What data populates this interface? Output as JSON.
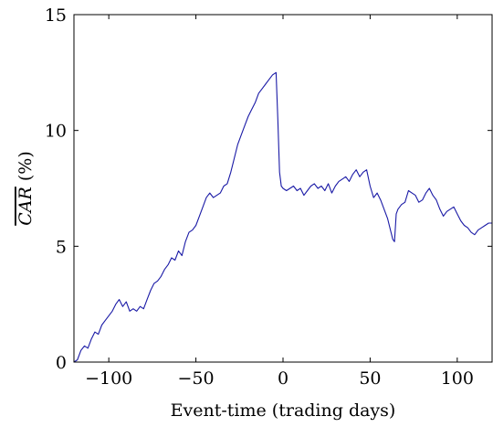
{
  "chart_data": {
    "type": "line",
    "xlabel": "Event-time (trading days)",
    "ylabel": "CAR (%)",
    "ylabel_overline": "CAR",
    "ylabel_rest": " (%)",
    "xlim": [
      -120,
      120
    ],
    "ylim": [
      0,
      15
    ],
    "xticks": [
      -100,
      -50,
      0,
      50,
      100
    ],
    "xtick_labels": [
      "−100",
      "−50",
      "0",
      "50",
      "100"
    ],
    "yticks": [
      0,
      5,
      10,
      15
    ],
    "ytick_labels": [
      "0",
      "5",
      "10",
      "15"
    ],
    "grid": false,
    "line_color": "#1a1aa6",
    "series": [
      {
        "x": [
          -120,
          -118,
          -116,
          -114,
          -112,
          -110,
          -108,
          -106,
          -104,
          -102,
          -100,
          -98,
          -96,
          -94,
          -92,
          -90,
          -88,
          -86,
          -84,
          -82,
          -80,
          -78,
          -76,
          -74,
          -72,
          -70,
          -68,
          -66,
          -64,
          -62,
          -60,
          -58,
          -56,
          -54,
          -52,
          -50,
          -48,
          -46,
          -44,
          -42,
          -40,
          -38,
          -36,
          -34,
          -32,
          -30,
          -28,
          -26,
          -24,
          -22,
          -20,
          -18,
          -16,
          -14,
          -12,
          -10,
          -8,
          -6,
          -4,
          -3,
          -2,
          -1,
          0,
          2,
          4,
          6,
          8,
          10,
          12,
          14,
          16,
          18,
          20,
          22,
          24,
          26,
          28,
          30,
          32,
          34,
          36,
          38,
          40,
          42,
          44,
          46,
          48,
          50,
          52,
          54,
          56,
          58,
          60,
          62,
          63,
          64,
          65,
          66,
          68,
          70,
          72,
          74,
          76,
          78,
          80,
          82,
          84,
          86,
          88,
          90,
          92,
          94,
          96,
          98,
          100,
          102,
          104,
          106,
          108,
          110,
          112,
          114,
          116,
          118,
          120
        ],
        "y": [
          0.0,
          0.1,
          0.5,
          0.7,
          0.6,
          1.0,
          1.3,
          1.2,
          1.6,
          1.8,
          2.0,
          2.2,
          2.5,
          2.7,
          2.4,
          2.6,
          2.2,
          2.3,
          2.2,
          2.4,
          2.3,
          2.7,
          3.1,
          3.4,
          3.5,
          3.7,
          4.0,
          4.2,
          4.5,
          4.4,
          4.8,
          4.6,
          5.2,
          5.6,
          5.7,
          5.9,
          6.3,
          6.7,
          7.1,
          7.3,
          7.1,
          7.2,
          7.3,
          7.6,
          7.7,
          8.2,
          8.8,
          9.4,
          9.8,
          10.2,
          10.6,
          10.9,
          11.2,
          11.6,
          11.8,
          12.0,
          12.2,
          12.4,
          12.5,
          10.5,
          8.2,
          7.6,
          7.5,
          7.4,
          7.5,
          7.6,
          7.4,
          7.5,
          7.2,
          7.4,
          7.6,
          7.7,
          7.5,
          7.6,
          7.4,
          7.7,
          7.3,
          7.6,
          7.8,
          7.9,
          8.0,
          7.8,
          8.1,
          8.3,
          8.0,
          8.2,
          8.3,
          7.6,
          7.1,
          7.3,
          7.0,
          6.6,
          6.2,
          5.6,
          5.3,
          5.2,
          6.4,
          6.6,
          6.8,
          6.9,
          7.4,
          7.3,
          7.2,
          6.9,
          7.0,
          7.3,
          7.5,
          7.2,
          7.0,
          6.6,
          6.3,
          6.5,
          6.6,
          6.7,
          6.4,
          6.1,
          5.9,
          5.8,
          5.6,
          5.5,
          5.7,
          5.8,
          5.9,
          6.0,
          6.0
        ]
      }
    ]
  }
}
